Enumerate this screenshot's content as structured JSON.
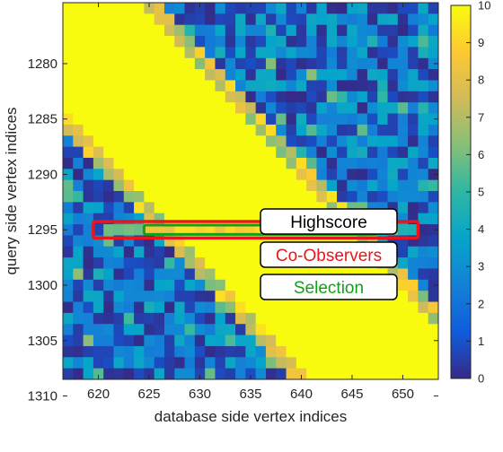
{
  "chart_data": {
    "type": "heatmap",
    "title": "",
    "xlabel": "database side vertex indices",
    "ylabel": "query side vertex indices",
    "xlim": [
      616.5,
      653.5
    ],
    "ylim": [
      1308.5,
      1274.5
    ],
    "x_ticks": [
      "620",
      "625",
      "630",
      "635",
      "640",
      "645",
      "650"
    ],
    "y_ticks": [
      "1280",
      "1285",
      "1290",
      "1295",
      "1300",
      "1305",
      "1310"
    ],
    "colorbar": {
      "min": 0,
      "max": 10,
      "ticks": [
        "0",
        "1",
        "2",
        "3",
        "4",
        "5",
        "6",
        "7",
        "8",
        "9",
        "10"
      ],
      "colormap": "parula"
    },
    "description": "Yellow (10) diagonal band running from upper-left to lower-right, dark blue (0-2) regions above-right and below-left; row 1295 highlighted.",
    "highlight_row": 1295,
    "band": {
      "slope": 1.0,
      "center_x_at_row_1274": 615,
      "width": 20
    },
    "highscore_cell": {
      "x": 637,
      "y": 1295
    },
    "co_observers_range": [
      621,
      651
    ],
    "selection_range": [
      625,
      647
    ],
    "legend": [
      {
        "label": "Highscore",
        "color": "#000000"
      },
      {
        "label": "Co-Observers",
        "color": "#e8161d"
      },
      {
        "label": "Selection",
        "color": "#13a019"
      }
    ]
  }
}
